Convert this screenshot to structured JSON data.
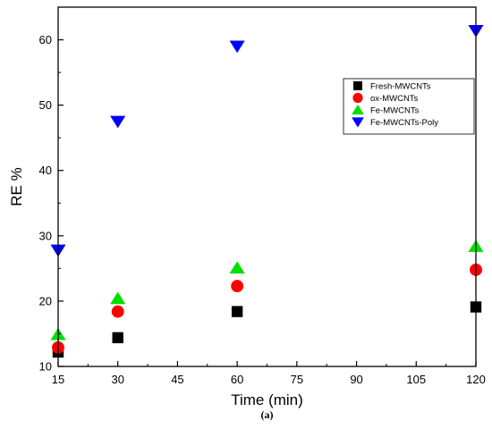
{
  "chart_data": {
    "type": "scatter",
    "title": "",
    "xlabel": "Time (min)",
    "ylabel": "RE %",
    "xlim": [
      15,
      120
    ],
    "ylim": [
      10,
      65
    ],
    "xticks": [
      15,
      30,
      45,
      60,
      75,
      90,
      105,
      120
    ],
    "yticks": [
      10,
      20,
      30,
      40,
      50,
      60
    ],
    "x": [
      15,
      30,
      60,
      120
    ],
    "grid": false,
    "legend_position": "top-right",
    "series": [
      {
        "name": "Fresh-MWCNTs",
        "marker": "square",
        "color": "#000000",
        "values": [
          12.2,
          14.4,
          18.4,
          19.1
        ]
      },
      {
        "name": "ox-MWCNTs",
        "marker": "circle",
        "color": "#ff0000",
        "values": [
          12.9,
          18.4,
          22.3,
          24.8
        ]
      },
      {
        "name": "Fe-MWCNTs",
        "marker": "triangle-up",
        "color": "#00e000",
        "values": [
          14.9,
          20.4,
          25.1,
          28.4
        ]
      },
      {
        "name": "Fe-MWCNTs-Poly",
        "marker": "triangle-down",
        "color": "#0000ff",
        "values": [
          27.8,
          47.5,
          59.0,
          61.4
        ]
      }
    ],
    "caption": "(a)"
  }
}
